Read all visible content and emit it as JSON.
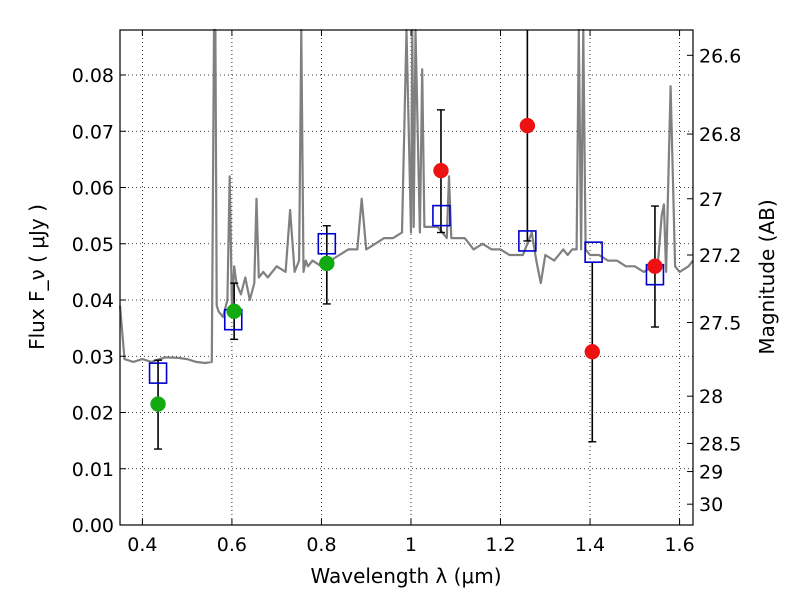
{
  "chart_data": {
    "type": "scatter",
    "xlabel": "Wavelength  λ (μm)",
    "ylabel_left": "Flux  F_ν  ( μJy )",
    "ylabel_right": "Magnitude (AB)",
    "xlim": [
      0.35,
      1.63
    ],
    "ylim": [
      0.0,
      0.088
    ],
    "grid": true,
    "x_ticks": [
      0.4,
      0.6,
      0.8,
      1.0,
      1.2,
      1.4,
      1.6
    ],
    "x_tick_labels": [
      "0.4",
      "0.6",
      "0.8",
      "1",
      "1.2",
      "1.4",
      "1.6"
    ],
    "y_ticks": [
      0.0,
      0.01,
      0.02,
      0.03,
      0.04,
      0.05,
      0.06,
      0.07,
      0.08
    ],
    "y_tick_labels": [
      "0.00",
      "0.01",
      "0.02",
      "0.03",
      "0.04",
      "0.05",
      "0.06",
      "0.07",
      "0.08"
    ],
    "right_ticks": [
      {
        "label": "26.6",
        "flux": 0.0835
      },
      {
        "label": "26.8",
        "flux": 0.0695
      },
      {
        "label": "27",
        "flux": 0.058
      },
      {
        "label": "27.2",
        "flux": 0.048
      },
      {
        "label": "27.5",
        "flux": 0.036
      },
      {
        "label": "28",
        "flux": 0.0229
      },
      {
        "label": "28.5",
        "flux": 0.0145
      },
      {
        "label": "29",
        "flux": 0.0095
      },
      {
        "label": "30",
        "flux": 0.0037
      }
    ],
    "series": [
      {
        "name": "model-spectrum",
        "kind": "line",
        "color": "#808080",
        "x": [
          0.35,
          0.36,
          0.38,
          0.4,
          0.42,
          0.45,
          0.48,
          0.5,
          0.52,
          0.54,
          0.555,
          0.56,
          0.563,
          0.566,
          0.57,
          0.58,
          0.59,
          0.595,
          0.6,
          0.605,
          0.61,
          0.62,
          0.63,
          0.64,
          0.65,
          0.655,
          0.66,
          0.67,
          0.68,
          0.7,
          0.72,
          0.73,
          0.74,
          0.75,
          0.755,
          0.76,
          0.765,
          0.77,
          0.78,
          0.8,
          0.82,
          0.84,
          0.86,
          0.88,
          0.89,
          0.9,
          0.92,
          0.94,
          0.96,
          0.98,
          0.99,
          1.0,
          1.003,
          1.006,
          1.01,
          1.02,
          1.025,
          1.03,
          1.04,
          1.06,
          1.07,
          1.08,
          1.085,
          1.09,
          1.1,
          1.12,
          1.14,
          1.16,
          1.18,
          1.2,
          1.22,
          1.25,
          1.27,
          1.28,
          1.29,
          1.3,
          1.32,
          1.34,
          1.35,
          1.36,
          1.37,
          1.375,
          1.38,
          1.385,
          1.39,
          1.4,
          1.42,
          1.44,
          1.46,
          1.48,
          1.5,
          1.52,
          1.54,
          1.55,
          1.56,
          1.565,
          1.57,
          1.58,
          1.59,
          1.6,
          1.62,
          1.63
        ],
        "y": [
          0.039,
          0.0295,
          0.029,
          0.0295,
          0.029,
          0.0298,
          0.0297,
          0.0295,
          0.029,
          0.0288,
          0.029,
          0.088,
          0.088,
          0.039,
          0.038,
          0.037,
          0.04,
          0.062,
          0.039,
          0.046,
          0.043,
          0.041,
          0.044,
          0.04,
          0.043,
          0.058,
          0.044,
          0.045,
          0.044,
          0.046,
          0.045,
          0.056,
          0.045,
          0.047,
          0.088,
          0.045,
          0.047,
          0.046,
          0.047,
          0.046,
          0.047,
          0.048,
          0.049,
          0.049,
          0.058,
          0.049,
          0.05,
          0.051,
          0.051,
          0.052,
          0.088,
          0.052,
          0.088,
          0.053,
          0.088,
          0.052,
          0.081,
          0.053,
          0.053,
          0.053,
          0.052,
          0.051,
          0.062,
          0.051,
          0.051,
          0.051,
          0.049,
          0.05,
          0.049,
          0.049,
          0.048,
          0.048,
          0.052,
          0.047,
          0.043,
          0.048,
          0.047,
          0.049,
          0.048,
          0.049,
          0.049,
          0.088,
          0.049,
          0.088,
          0.049,
          0.048,
          0.048,
          0.047,
          0.047,
          0.046,
          0.046,
          0.045,
          0.046,
          0.045,
          0.055,
          0.057,
          0.045,
          0.078,
          0.046,
          0.045,
          0.046,
          0.047
        ]
      },
      {
        "name": "model-photometry",
        "kind": "open-square",
        "color": "#0000cc",
        "x": [
          0.435,
          0.603,
          0.812,
          1.068,
          1.26,
          1.408,
          1.545
        ],
        "y": [
          0.027,
          0.0365,
          0.05,
          0.055,
          0.0505,
          0.0485,
          0.0445
        ]
      },
      {
        "name": "observed-green",
        "kind": "filled-circle",
        "color": "#11aa11",
        "x": [
          0.435,
          0.605,
          0.812
        ],
        "y": [
          0.0215,
          0.038,
          0.0465
        ],
        "yerr_low": [
          0.0135,
          0.033,
          0.0393
        ],
        "yerr_high": [
          0.0293,
          0.043,
          0.0532
        ]
      },
      {
        "name": "observed-red",
        "kind": "filled-circle",
        "color": "#ee1111",
        "x": [
          1.067,
          1.26,
          1.405,
          1.545
        ],
        "y": [
          0.063,
          0.071,
          0.0308,
          0.046
        ],
        "yerr_low": [
          0.052,
          0.0505,
          0.0148,
          0.0352
        ],
        "yerr_high": [
          0.0738,
          0.088,
          0.0467,
          0.0567
        ]
      }
    ]
  }
}
